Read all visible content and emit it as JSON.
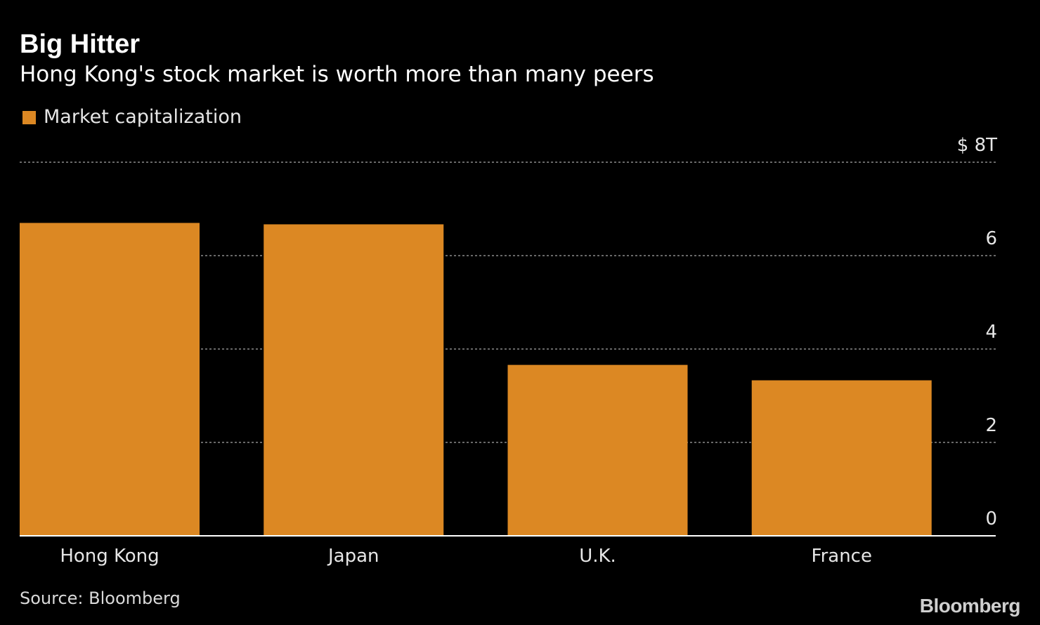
{
  "header": {
    "title": "Big Hitter",
    "subtitle": "Hong Kong's stock market is worth more than many peers"
  },
  "legend": {
    "label": "Market capitalization"
  },
  "footer": {
    "source": "Source: Bloomberg",
    "brand": "Bloomberg"
  },
  "colors": {
    "background": "#000000",
    "bar": "#dc8823",
    "grid": "#8a8a8a",
    "axis": "#ffffff",
    "tick_text": "#e6e6e6"
  },
  "chart_data": {
    "type": "bar",
    "categories": [
      "Hong Kong",
      "Japan",
      "U.K.",
      "France"
    ],
    "series": [
      {
        "name": "Market capitalization",
        "values": [
          6.7,
          6.67,
          3.66,
          3.33
        ]
      }
    ],
    "ylim": [
      0,
      8
    ],
    "yticks": [
      {
        "value": 0,
        "label": "0"
      },
      {
        "value": 2,
        "label": "2"
      },
      {
        "value": 4,
        "label": "4"
      },
      {
        "value": 6,
        "label": "6"
      },
      {
        "value": 8,
        "label": "$ 8T"
      }
    ],
    "grid": true,
    "y_axis_side": "right",
    "legend_position": "top-left"
  }
}
